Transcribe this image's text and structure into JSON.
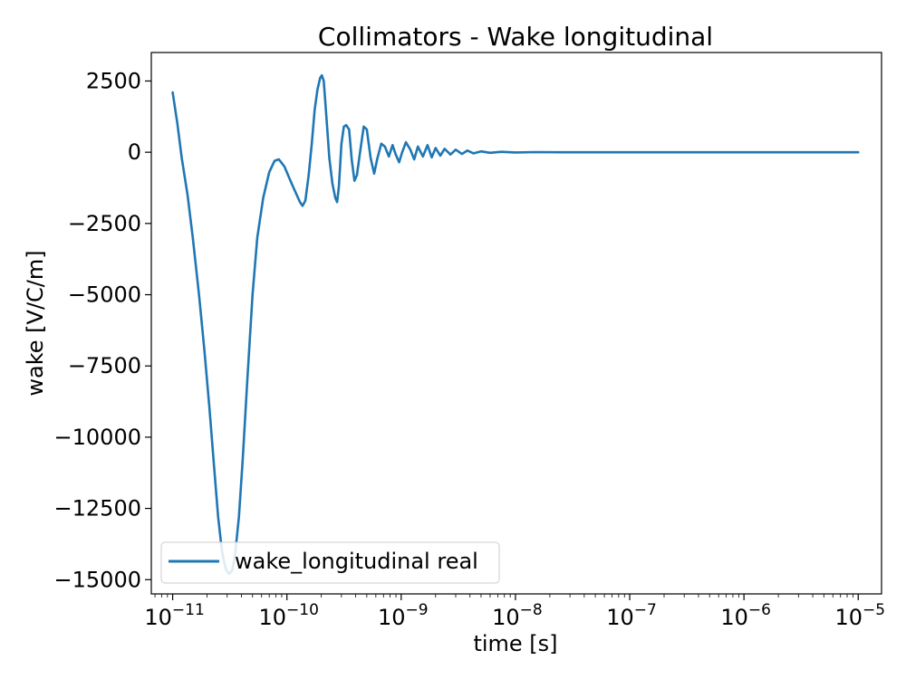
{
  "chart_data": {
    "type": "line",
    "title": "Collimators - Wake longitudinal",
    "xlabel": "time [s]",
    "ylabel": "wake [V/C/m]",
    "xscale": "log",
    "xlim": [
      6.5e-12,
      1.6e-05
    ],
    "ylim": [
      -15500,
      3500
    ],
    "xticks": [
      {
        "value": 1e-11,
        "exp": "−11"
      },
      {
        "value": 1e-10,
        "exp": "−10"
      },
      {
        "value": 1e-09,
        "exp": "−9"
      },
      {
        "value": 1e-08,
        "exp": "−8"
      },
      {
        "value": 1e-07,
        "exp": "−7"
      },
      {
        "value": 1e-06,
        "exp": "−6"
      },
      {
        "value": 1e-05,
        "exp": "−5"
      }
    ],
    "xtick_base": "10",
    "yticks": [
      {
        "value": 2500,
        "label": "2500"
      },
      {
        "value": 0,
        "label": "0"
      },
      {
        "value": -2500,
        "label": "−2500"
      },
      {
        "value": -5000,
        "label": "−5000"
      },
      {
        "value": -7500,
        "label": "−7500"
      },
      {
        "value": -10000,
        "label": "−10000"
      },
      {
        "value": -12500,
        "label": "−12500"
      },
      {
        "value": -15000,
        "label": "−15000"
      }
    ],
    "grid": false,
    "legend_position": "lower-left",
    "series": [
      {
        "name": "wake_longitudinal real",
        "color": "#1f77b4",
        "points": [
          [
            1e-11,
            2100
          ],
          [
            1.1e-11,
            1000
          ],
          [
            1.2e-11,
            -200
          ],
          [
            1.35e-11,
            -1500
          ],
          [
            1.5e-11,
            -3000
          ],
          [
            1.7e-11,
            -5000
          ],
          [
            1.9e-11,
            -7000
          ],
          [
            2.1e-11,
            -9000
          ],
          [
            2.3e-11,
            -11000
          ],
          [
            2.5e-11,
            -12800
          ],
          [
            2.7e-11,
            -14000
          ],
          [
            2.9e-11,
            -14600
          ],
          [
            3.1e-11,
            -14800
          ],
          [
            3.3e-11,
            -14700
          ],
          [
            3.5e-11,
            -14200
          ],
          [
            3.8e-11,
            -12800
          ],
          [
            4.1e-11,
            -10800
          ],
          [
            4.5e-11,
            -8000
          ],
          [
            5e-11,
            -5000
          ],
          [
            5.5e-11,
            -3000
          ],
          [
            6.2e-11,
            -1600
          ],
          [
            7e-11,
            -700
          ],
          [
            7.8e-11,
            -300
          ],
          [
            8.5e-11,
            -250
          ],
          [
            9.5e-11,
            -500
          ],
          [
            1.1e-10,
            -1100
          ],
          [
            1.3e-10,
            -1750
          ],
          [
            1.37e-10,
            -1880
          ],
          [
            1.45e-10,
            -1700
          ],
          [
            1.55e-10,
            -800
          ],
          [
            1.65e-10,
            300
          ],
          [
            1.75e-10,
            1500
          ],
          [
            1.85e-10,
            2200
          ],
          [
            1.95e-10,
            2600
          ],
          [
            2.02e-10,
            2700
          ],
          [
            2.1e-10,
            2500
          ],
          [
            2.2e-10,
            1400
          ],
          [
            2.35e-10,
            -200
          ],
          [
            2.5e-10,
            -1100
          ],
          [
            2.65e-10,
            -1600
          ],
          [
            2.75e-10,
            -1750
          ],
          [
            2.85e-10,
            -1200
          ],
          [
            3e-10,
            300
          ],
          [
            3.15e-10,
            900
          ],
          [
            3.3e-10,
            950
          ],
          [
            3.5e-10,
            800
          ],
          [
            3.7e-10,
            -300
          ],
          [
            3.9e-10,
            -1000
          ],
          [
            4.1e-10,
            -800
          ],
          [
            4.4e-10,
            100
          ],
          [
            4.7e-10,
            900
          ],
          [
            5e-10,
            800
          ],
          [
            5.4e-10,
            -200
          ],
          [
            5.8e-10,
            -750
          ],
          [
            6.2e-10,
            -200
          ],
          [
            6.7e-10,
            300
          ],
          [
            7.2e-10,
            200
          ],
          [
            7.8e-10,
            -150
          ],
          [
            8.4e-10,
            250
          ],
          [
            9e-10,
            -100
          ],
          [
            9.6e-10,
            -350
          ],
          [
            1.02e-09,
            0
          ],
          [
            1.1e-09,
            350
          ],
          [
            1.2e-09,
            100
          ],
          [
            1.3e-09,
            -250
          ],
          [
            1.4e-09,
            200
          ],
          [
            1.55e-09,
            -150
          ],
          [
            1.7e-09,
            250
          ],
          [
            1.85e-09,
            -180
          ],
          [
            2e-09,
            150
          ],
          [
            2.2e-09,
            -120
          ],
          [
            2.4e-09,
            120
          ],
          [
            2.7e-09,
            -80
          ],
          [
            3e-09,
            90
          ],
          [
            3.4e-09,
            -60
          ],
          [
            3.8e-09,
            60
          ],
          [
            4.3e-09,
            -40
          ],
          [
            5e-09,
            30
          ],
          [
            6e-09,
            -20
          ],
          [
            7.5e-09,
            15
          ],
          [
            1e-08,
            -10
          ],
          [
            1.5e-08,
            5
          ],
          [
            2.5e-08,
            0
          ],
          [
            1e-07,
            0
          ],
          [
            1e-06,
            0
          ],
          [
            1e-05,
            0
          ]
        ]
      }
    ]
  }
}
